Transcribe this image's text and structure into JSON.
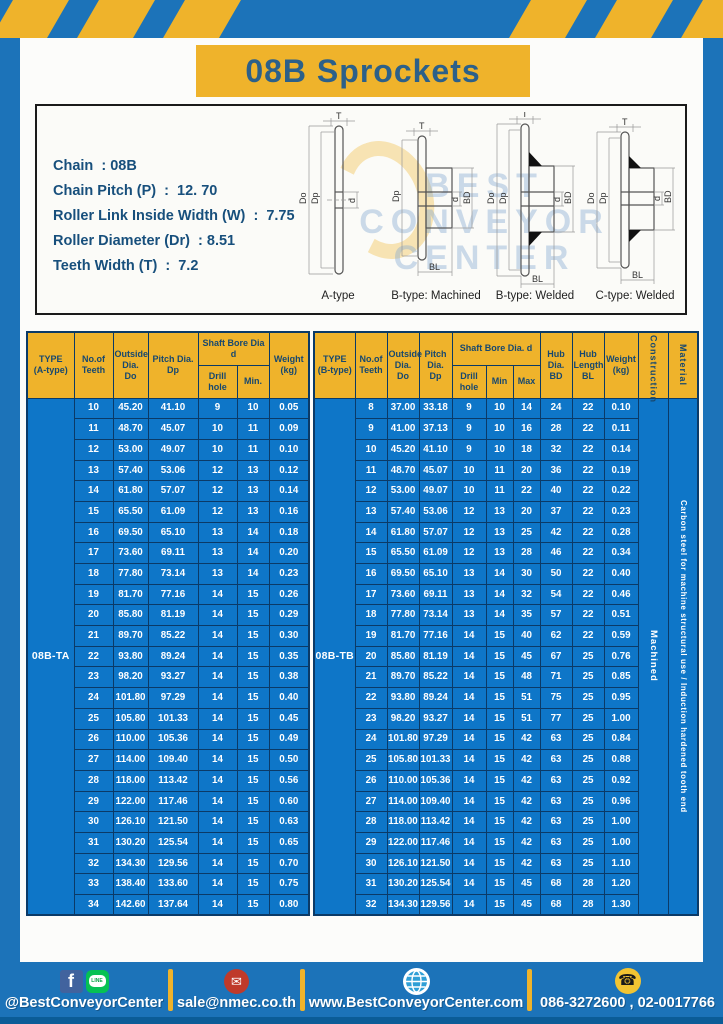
{
  "page": {
    "title": "08B Sprockets"
  },
  "colors": {
    "frame_blue": "#1c73b9",
    "accent_yellow": "#efb32b",
    "cell_blue": "#0e76c8",
    "border_navy": "#0b3a67",
    "title_navy": "#2c6089",
    "footer_strip": "#0b5c97"
  },
  "specs": {
    "lines": [
      "Chain  : 08B",
      "Chain Pitch (P)  :  12. 70",
      "Roller Link Inside Width (W)  :  7.75",
      "Roller Diameter (Dr)  : 8.51",
      "Teeth Width (T)  :  7.2"
    ]
  },
  "drawings": {
    "watermark_lines": [
      "BEST",
      "CONVEYOR",
      "CENTER"
    ],
    "items": [
      {
        "caption": "A-type",
        "dim_top": "T",
        "dim_left1": "Do",
        "dim_left2": "Dp",
        "dim_right1": "d",
        "dim_right2": "",
        "dim_bottom": ""
      },
      {
        "caption": "B-type: Machined",
        "dim_top": "T",
        "dim_left1": "",
        "dim_left2": "Dp",
        "dim_right1": "d",
        "dim_right2": "BD",
        "dim_bottom": "BL"
      },
      {
        "caption": "B-type: Welded",
        "dim_top": "T",
        "dim_left1": "Do",
        "dim_left2": "Dp",
        "dim_right1": "d",
        "dim_right2": "BD",
        "dim_bottom": "BL"
      },
      {
        "caption": "C-type: Welded",
        "dim_top": "T",
        "dim_left1": "Do",
        "dim_left2": "Dp",
        "dim_right1": "d",
        "dim_right2": "BD",
        "dim_bottom": "BL"
      }
    ]
  },
  "table_a": {
    "type_label": "08B-TA",
    "headers": {
      "type": "TYPE\n(A-type)",
      "teeth": "No.of\nTeeth",
      "outside": "Outside\nDia.\nDo",
      "pitch": "Pitch Dia.\nDp",
      "shaft_bore": "Shaft Bore Dia d",
      "drill": "Drill hole",
      "min": "Min.",
      "weight": "Weight\n(kg)"
    },
    "rows": [
      [
        "10",
        "45.20",
        "41.10",
        "9",
        "10",
        "0.05"
      ],
      [
        "11",
        "48.70",
        "45.07",
        "10",
        "11",
        "0.09"
      ],
      [
        "12",
        "53.00",
        "49.07",
        "10",
        "11",
        "0.10"
      ],
      [
        "13",
        "57.40",
        "53.06",
        "12",
        "13",
        "0.12"
      ],
      [
        "14",
        "61.80",
        "57.07",
        "12",
        "13",
        "0.14"
      ],
      [
        "15",
        "65.50",
        "61.09",
        "12",
        "13",
        "0.16"
      ],
      [
        "16",
        "69.50",
        "65.10",
        "13",
        "14",
        "0.18"
      ],
      [
        "17",
        "73.60",
        "69.11",
        "13",
        "14",
        "0.20"
      ],
      [
        "18",
        "77.80",
        "73.14",
        "13",
        "14",
        "0.23"
      ],
      [
        "19",
        "81.70",
        "77.16",
        "14",
        "15",
        "0.26"
      ],
      [
        "20",
        "85.80",
        "81.19",
        "14",
        "15",
        "0.29"
      ],
      [
        "21",
        "89.70",
        "85.22",
        "14",
        "15",
        "0.30"
      ],
      [
        "22",
        "93.80",
        "89.24",
        "14",
        "15",
        "0.35"
      ],
      [
        "23",
        "98.20",
        "93.27",
        "14",
        "15",
        "0.38"
      ],
      [
        "24",
        "101.80",
        "97.29",
        "14",
        "15",
        "0.40"
      ],
      [
        "25",
        "105.80",
        "101.33",
        "14",
        "15",
        "0.45"
      ],
      [
        "26",
        "110.00",
        "105.36",
        "14",
        "15",
        "0.49"
      ],
      [
        "27",
        "114.00",
        "109.40",
        "14",
        "15",
        "0.50"
      ],
      [
        "28",
        "118.00",
        "113.42",
        "14",
        "15",
        "0.56"
      ],
      [
        "29",
        "122.00",
        "117.46",
        "14",
        "15",
        "0.60"
      ],
      [
        "30",
        "126.10",
        "121.50",
        "14",
        "15",
        "0.63"
      ],
      [
        "31",
        "130.20",
        "125.54",
        "14",
        "15",
        "0.65"
      ],
      [
        "32",
        "134.30",
        "129.56",
        "14",
        "15",
        "0.70"
      ],
      [
        "33",
        "138.40",
        "133.60",
        "14",
        "15",
        "0.75"
      ],
      [
        "34",
        "142.60",
        "137.64",
        "14",
        "15",
        "0.80"
      ]
    ]
  },
  "table_b": {
    "type_label": "08B-TB",
    "construction": "Machined",
    "material": "Carbon steel for machine structural use / Induction hardened tooth end",
    "headers": {
      "type": "TYPE\n(B-type)",
      "teeth": "No.of\nTeeth",
      "outside": "Outside\nDia.\nDo",
      "pitch": "Pitch\nDia.\nDp",
      "shaft_bore": "Shaft Bore Dia. d",
      "drill": "Drill hole",
      "min": "Min",
      "max": "Max",
      "hub_dia": "Hub\nDia.\nBD",
      "hub_len": "Hub\nLength\nBL",
      "weight": "Weight\n(kg)",
      "construction": "Construction",
      "material": "Material"
    },
    "rows": [
      [
        "8",
        "37.00",
        "33.18",
        "9",
        "10",
        "14",
        "24",
        "22",
        "0.10"
      ],
      [
        "9",
        "41.00",
        "37.13",
        "9",
        "10",
        "16",
        "28",
        "22",
        "0.11"
      ],
      [
        "10",
        "45.20",
        "41.10",
        "9",
        "10",
        "18",
        "32",
        "22",
        "0.14"
      ],
      [
        "11",
        "48.70",
        "45.07",
        "10",
        "11",
        "20",
        "36",
        "22",
        "0.19"
      ],
      [
        "12",
        "53.00",
        "49.07",
        "10",
        "11",
        "22",
        "40",
        "22",
        "0.22"
      ],
      [
        "13",
        "57.40",
        "53.06",
        "12",
        "13",
        "20",
        "37",
        "22",
        "0.23"
      ],
      [
        "14",
        "61.80",
        "57.07",
        "12",
        "13",
        "25",
        "42",
        "22",
        "0.28"
      ],
      [
        "15",
        "65.50",
        "61.09",
        "12",
        "13",
        "28",
        "46",
        "22",
        "0.34"
      ],
      [
        "16",
        "69.50",
        "65.10",
        "13",
        "14",
        "30",
        "50",
        "22",
        "0.40"
      ],
      [
        "17",
        "73.60",
        "69.11",
        "13",
        "14",
        "32",
        "54",
        "22",
        "0.46"
      ],
      [
        "18",
        "77.80",
        "73.14",
        "13",
        "14",
        "35",
        "57",
        "22",
        "0.51"
      ],
      [
        "19",
        "81.70",
        "77.16",
        "14",
        "15",
        "40",
        "62",
        "22",
        "0.59"
      ],
      [
        "20",
        "85.80",
        "81.19",
        "14",
        "15",
        "45",
        "67",
        "25",
        "0.76"
      ],
      [
        "21",
        "89.70",
        "85.22",
        "14",
        "15",
        "48",
        "71",
        "25",
        "0.85"
      ],
      [
        "22",
        "93.80",
        "89.24",
        "14",
        "15",
        "51",
        "75",
        "25",
        "0.95"
      ],
      [
        "23",
        "98.20",
        "93.27",
        "14",
        "15",
        "51",
        "77",
        "25",
        "1.00"
      ],
      [
        "24",
        "101.80",
        "97.29",
        "14",
        "15",
        "42",
        "63",
        "25",
        "0.84"
      ],
      [
        "25",
        "105.80",
        "101.33",
        "14",
        "15",
        "42",
        "63",
        "25",
        "0.88"
      ],
      [
        "26",
        "110.00",
        "105.36",
        "14",
        "15",
        "42",
        "63",
        "25",
        "0.92"
      ],
      [
        "27",
        "114.00",
        "109.40",
        "14",
        "15",
        "42",
        "63",
        "25",
        "0.96"
      ],
      [
        "28",
        "118.00",
        "113.42",
        "14",
        "15",
        "42",
        "63",
        "25",
        "1.00"
      ],
      [
        "29",
        "122.00",
        "117.46",
        "14",
        "15",
        "42",
        "63",
        "25",
        "1.00"
      ],
      [
        "30",
        "126.10",
        "121.50",
        "14",
        "15",
        "42",
        "63",
        "25",
        "1.10"
      ],
      [
        "31",
        "130.20",
        "125.54",
        "14",
        "15",
        "45",
        "68",
        "28",
        "1.20"
      ],
      [
        "32",
        "134.30",
        "129.56",
        "14",
        "15",
        "45",
        "68",
        "28",
        "1.30"
      ]
    ]
  },
  "footer": {
    "facebook_f": "f",
    "line_text": "LINE",
    "mail_glyph": "✉",
    "phone_glyph": "☎",
    "social_label": "@BestConveyorCenter",
    "email_label": "sale@nmec.co.th",
    "web_label": "www.BestConveyorCenter.com",
    "phone_label": "086-3272600 , 02-0017766"
  }
}
